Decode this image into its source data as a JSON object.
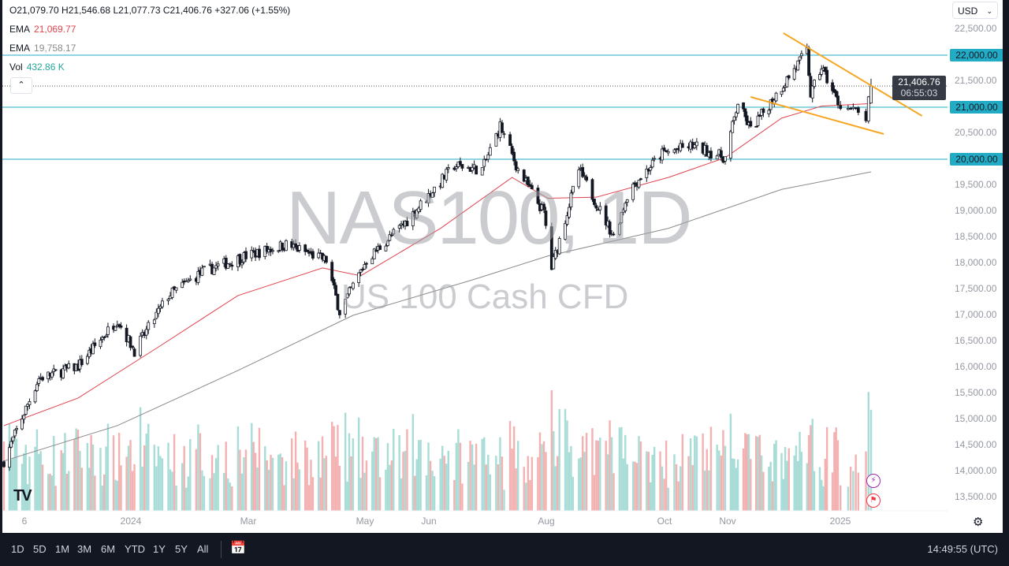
{
  "legend": {
    "ohlc": "O21,079.70 H21,546.68 L21,077.73 C21,406.76 +327.06 (+1.55%)",
    "ema1_label": "EMA",
    "ema1_value": "21,069.77",
    "ema2_label": "EMA",
    "ema2_value": "19,758.17",
    "vol_label": "Vol",
    "vol_value": "432.86 K"
  },
  "currency": "USD",
  "watermark": {
    "symbol": "NAS100, 1D",
    "description": "US 100 Cash CFD"
  },
  "current_price": {
    "price": "21,406.76",
    "countdown": "06:55:03"
  },
  "bottom_bar": {
    "ranges": [
      "1D",
      "5D",
      "1M",
      "3M",
      "6M",
      "YTD",
      "1Y",
      "5Y",
      "All"
    ],
    "clock": "14:49:55 (UTC)"
  },
  "colors": {
    "up": "#ffffff",
    "down": "#131722",
    "ema_fast": "#e0434e",
    "ema_slow": "#8a8a8a",
    "hline": "#22abc5",
    "trendline": "#f5a623",
    "vol_up": "#9fd8d2",
    "vol_down": "#f2a9a9"
  },
  "icons": {
    "logo": "tradingview-logo",
    "settings": "gear-icon",
    "goto_date": "calendar-arrow-icon",
    "events": [
      "lightning-icon",
      "us-flag-icon"
    ]
  },
  "chart_data": {
    "type": "candlestick",
    "title": "NAS100, 1D",
    "ylim": [
      13250,
      22750
    ],
    "y_ticks": [
      "22,500.00",
      "22,000.00",
      "21,500.00",
      "21,000.00",
      "20,500.00",
      "20,000.00",
      "19,500.00",
      "19,000.00",
      "18,500.00",
      "18,000.00",
      "17,500.00",
      "17,000.00",
      "16,500.00",
      "16,000.00",
      "15,500.00",
      "15,000.00",
      "14,500.00",
      "14,000.00",
      "13,500.00"
    ],
    "x_ticks": [
      "6",
      "2024",
      "Mar",
      "May",
      "Jun",
      "Aug",
      "Oct",
      "Nov",
      "2025"
    ],
    "close_path": [
      [
        "2023-10-27",
        14200
      ],
      [
        "2023-11-15",
        15790
      ],
      [
        "2023-12-06",
        16020
      ],
      [
        "2023-12-27",
        16920
      ],
      [
        "2024-01-05",
        16320
      ],
      [
        "2024-01-22",
        17380
      ],
      [
        "2024-02-08",
        17830
      ],
      [
        "2024-03-01",
        18140
      ],
      [
        "2024-03-22",
        18360
      ],
      [
        "2024-04-12",
        18060
      ],
      [
        "2024-04-19",
        17070
      ],
      [
        "2024-05-03",
        18060
      ],
      [
        "2024-05-24",
        18820
      ],
      [
        "2024-06-17",
        19880
      ],
      [
        "2024-07-01",
        19800
      ],
      [
        "2024-07-10",
        20640
      ],
      [
        "2024-07-19",
        19800
      ],
      [
        "2024-08-01",
        18970
      ],
      [
        "2024-08-05",
        17910
      ],
      [
        "2024-08-19",
        19800
      ],
      [
        "2024-09-06",
        18520
      ],
      [
        "2024-09-14",
        19420
      ],
      [
        "2024-10-01",
        20110
      ],
      [
        "2024-10-16",
        20260
      ],
      [
        "2024-11-01",
        20030
      ],
      [
        "2024-11-08",
        21090
      ],
      [
        "2024-11-15",
        20560
      ],
      [
        "2024-12-02",
        21390
      ],
      [
        "2024-12-16",
        22075
      ],
      [
        "2024-12-18",
        21240
      ],
      [
        "2024-12-24",
        21770
      ],
      [
        "2025-01-02",
        21090
      ],
      [
        "2025-01-13",
        20790
      ],
      [
        "2025-01-15",
        21406.76
      ]
    ],
    "ema_fast": [
      [
        "2023-10-27",
        14880
      ],
      [
        "2023-12-06",
        15410
      ],
      [
        "2024-01-17",
        16390
      ],
      [
        "2024-02-26",
        17380
      ],
      [
        "2024-04-10",
        17910
      ],
      [
        "2024-04-30",
        17760
      ],
      [
        "2024-06-10",
        18670
      ],
      [
        "2024-07-16",
        19650
      ],
      [
        "2024-08-03",
        19250
      ],
      [
        "2024-08-28",
        19270
      ],
      [
        "2024-10-04",
        19650
      ],
      [
        "2024-11-01",
        20030
      ],
      [
        "2024-12-02",
        20790
      ],
      [
        "2024-12-24",
        21020
      ],
      [
        "2025-01-15",
        21069.77
      ]
    ],
    "ema_slow": [
      [
        "2023-10-27",
        14200
      ],
      [
        "2023-12-27",
        14880
      ],
      [
        "2024-02-26",
        15940
      ],
      [
        "2024-04-26",
        17000
      ],
      [
        "2024-06-26",
        17680
      ],
      [
        "2024-08-03",
        18140
      ],
      [
        "2024-10-04",
        18670
      ],
      [
        "2024-12-02",
        19420
      ],
      [
        "2025-01-15",
        19758.17
      ]
    ],
    "horizontal_lines": [
      22000,
      21000,
      20000
    ],
    "trendlines": [
      {
        "from": [
          "2024-12-03",
          22424
        ],
        "to": [
          "2025-02-04",
          20833
        ]
      },
      {
        "from": [
          "2024-11-15",
          21197
        ],
        "to": [
          "2025-01-20",
          20485
        ]
      }
    ],
    "grid": false
  }
}
